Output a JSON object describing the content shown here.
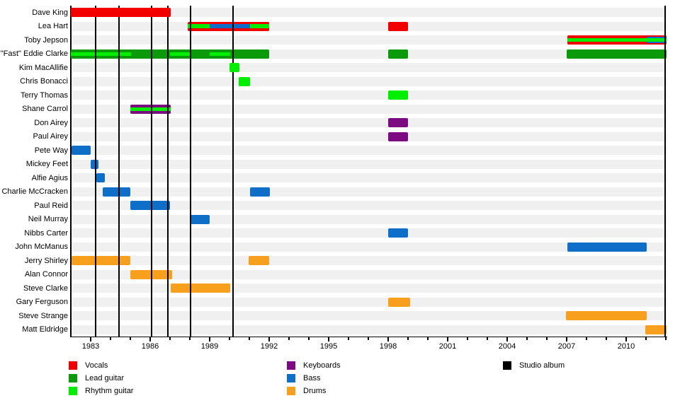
{
  "chart_data": {
    "type": "bar",
    "subtype": "band-membership-timeline",
    "x_axis": {
      "min": 1982,
      "max": 2012,
      "major_ticks": [
        1983,
        1986,
        1989,
        1992,
        1995,
        1998,
        2001,
        2004,
        2007,
        2010
      ],
      "minor_tick_step": 1,
      "grid": false
    },
    "colors": {
      "vocals": "#f20000",
      "lead": "#0a9a0a",
      "rhythm": "#00ef00",
      "keyboards": "#7c0a80",
      "bass": "#0e6ec8",
      "drums": "#f8a01e",
      "album": "#000000"
    },
    "album_years": [
      1983.25,
      1984.43,
      1986.07,
      1986.89,
      1988.04,
      1990.18,
      2011.96
    ],
    "members": [
      {
        "name": "Dave King",
        "bars": [
          {
            "from": 1982.0,
            "to": 1987.05,
            "z": 7,
            "layers": [
              {
                "role": "vocals"
              }
            ]
          }
        ]
      },
      {
        "name": "Lea Hart",
        "bars": [
          {
            "from": 1987.9,
            "to": 1992.0,
            "layers": [
              {
                "role": "vocals"
              },
              {
                "role": "rhythm",
                "t": 28,
                "b": 72,
                "from": 1987.9,
                "to": 1989.0
              },
              {
                "role": "bass",
                "t": 28,
                "b": 72,
                "from": 1989.0,
                "to": 1991.05
              },
              {
                "role": "rhythm",
                "t": 28,
                "b": 72,
                "from": 1991.05,
                "to": 1992.0
              }
            ]
          },
          {
            "from": 1998.0,
            "to": 1999.0,
            "layers": [
              {
                "role": "vocals"
              }
            ]
          }
        ]
      },
      {
        "name": "Toby Jepson",
        "bars": [
          {
            "from": 2007.05,
            "to": 2012.04,
            "layers": [
              {
                "role": "vocals"
              },
              {
                "role": "bass",
                "t": 16,
                "b": 84,
                "from": 2011.05,
                "to": 2012.04
              },
              {
                "role": "rhythm",
                "t": 32,
                "b": 68
              }
            ]
          }
        ]
      },
      {
        "name": "\"Fast\" Eddie Clarke",
        "bars": [
          {
            "from": 1982.0,
            "to": 1992.0,
            "layers": [
              {
                "role": "lead"
              },
              {
                "role": "rhythm",
                "t": 30,
                "b": 70,
                "from": 1982.0,
                "to": 1985.05
              },
              {
                "role": "rhythm",
                "t": 30,
                "b": 70,
                "from": 1987.0,
                "to": 1988.05
              },
              {
                "role": "rhythm",
                "t": 30,
                "b": 70,
                "from": 1989.0,
                "to": 1990.05
              }
            ]
          },
          {
            "from": 1998.0,
            "to": 1999.0,
            "layers": [
              {
                "role": "lead"
              }
            ]
          },
          {
            "from": 2007.0,
            "to": 2012.04,
            "layers": [
              {
                "role": "lead"
              }
            ]
          }
        ]
      },
      {
        "name": "Kim MacAllifie",
        "bars": [
          {
            "from": 1990.0,
            "to": 1990.5,
            "z": 7,
            "layers": [
              {
                "role": "rhythm"
              }
            ]
          }
        ]
      },
      {
        "name": "Chris Bonacci",
        "bars": [
          {
            "from": 1990.45,
            "to": 1991.05,
            "z": 7,
            "layers": [
              {
                "role": "rhythm"
              }
            ]
          }
        ]
      },
      {
        "name": "Terry Thomas",
        "bars": [
          {
            "from": 1998.0,
            "to": 1999.0,
            "layers": [
              {
                "role": "rhythm"
              }
            ]
          }
        ]
      },
      {
        "name": "Shane Carrol",
        "bars": [
          {
            "from": 1985.0,
            "to": 1987.05,
            "layers": [
              {
                "role": "keyboards"
              },
              {
                "role": "rhythm",
                "t": 30,
                "b": 70
              }
            ]
          }
        ]
      },
      {
        "name": "Don Airey",
        "bars": [
          {
            "from": 1998.0,
            "to": 1999.0,
            "layers": [
              {
                "role": "keyboards"
              }
            ]
          }
        ]
      },
      {
        "name": "Paul Airey",
        "bars": [
          {
            "from": 1998.0,
            "to": 1999.0,
            "layers": [
              {
                "role": "keyboards"
              }
            ]
          }
        ]
      },
      {
        "name": "Pete Way",
        "bars": [
          {
            "from": 1982.05,
            "to": 1983.0,
            "layers": [
              {
                "role": "bass"
              }
            ]
          }
        ]
      },
      {
        "name": "Mickey Feet",
        "bars": [
          {
            "from": 1983.0,
            "to": 1983.4,
            "layers": [
              {
                "role": "bass"
              }
            ]
          }
        ]
      },
      {
        "name": "Alfie Agius",
        "bars": [
          {
            "from": 1983.3,
            "to": 1983.7,
            "layers": [
              {
                "role": "bass"
              }
            ]
          }
        ]
      },
      {
        "name": "Charlie McCracken",
        "bars": [
          {
            "from": 1983.6,
            "to": 1985.0,
            "layers": [
              {
                "role": "bass"
              }
            ]
          },
          {
            "from": 1991.05,
            "to": 1992.05,
            "layers": [
              {
                "role": "bass"
              }
            ]
          }
        ]
      },
      {
        "name": "Paul Reid",
        "bars": [
          {
            "from": 1985.0,
            "to": 1987.0,
            "layers": [
              {
                "role": "bass"
              }
            ]
          }
        ]
      },
      {
        "name": "Neil Murray",
        "bars": [
          {
            "from": 1988.05,
            "to": 1989.0,
            "layers": [
              {
                "role": "bass"
              }
            ]
          }
        ]
      },
      {
        "name": "Nibbs Carter",
        "bars": [
          {
            "from": 1998.0,
            "to": 1999.0,
            "layers": [
              {
                "role": "bass"
              }
            ]
          }
        ]
      },
      {
        "name": "John McManus",
        "bars": [
          {
            "from": 2007.05,
            "to": 2011.05,
            "layers": [
              {
                "role": "bass"
              }
            ]
          }
        ]
      },
      {
        "name": "Jerry Shirley",
        "bars": [
          {
            "from": 1982.05,
            "to": 1985.0,
            "layers": [
              {
                "role": "drums"
              }
            ]
          },
          {
            "from": 1990.95,
            "to": 1992.0,
            "layers": [
              {
                "role": "drums"
              }
            ]
          }
        ]
      },
      {
        "name": "Alan Connor",
        "bars": [
          {
            "from": 1985.0,
            "to": 1987.1,
            "layers": [
              {
                "role": "drums"
              }
            ]
          }
        ]
      },
      {
        "name": "Steve Clarke",
        "bars": [
          {
            "from": 1987.05,
            "to": 1990.05,
            "layers": [
              {
                "role": "drums"
              }
            ]
          }
        ]
      },
      {
        "name": "Gary Ferguson",
        "bars": [
          {
            "from": 1998.0,
            "to": 1999.1,
            "layers": [
              {
                "role": "drums"
              }
            ]
          }
        ]
      },
      {
        "name": "Steve Strange",
        "bars": [
          {
            "from": 2006.95,
            "to": 2011.05,
            "layers": [
              {
                "role": "drums"
              }
            ]
          }
        ]
      },
      {
        "name": "Matt Eldridge",
        "bars": [
          {
            "from": 2010.95,
            "to": 2012.04,
            "layers": [
              {
                "role": "drums"
              }
            ]
          }
        ]
      }
    ]
  },
  "legend": {
    "columns": [
      [
        {
          "label": "Vocals",
          "role": "vocals"
        },
        {
          "label": "Lead guitar",
          "role": "lead"
        },
        {
          "label": "Rhythm guitar",
          "role": "rhythm"
        }
      ],
      [
        {
          "label": "Keyboards",
          "role": "keyboards"
        },
        {
          "label": "Bass",
          "role": "bass"
        },
        {
          "label": "Drums",
          "role": "drums"
        }
      ],
      [
        {
          "label": "Studio album",
          "role": "album"
        }
      ]
    ]
  }
}
